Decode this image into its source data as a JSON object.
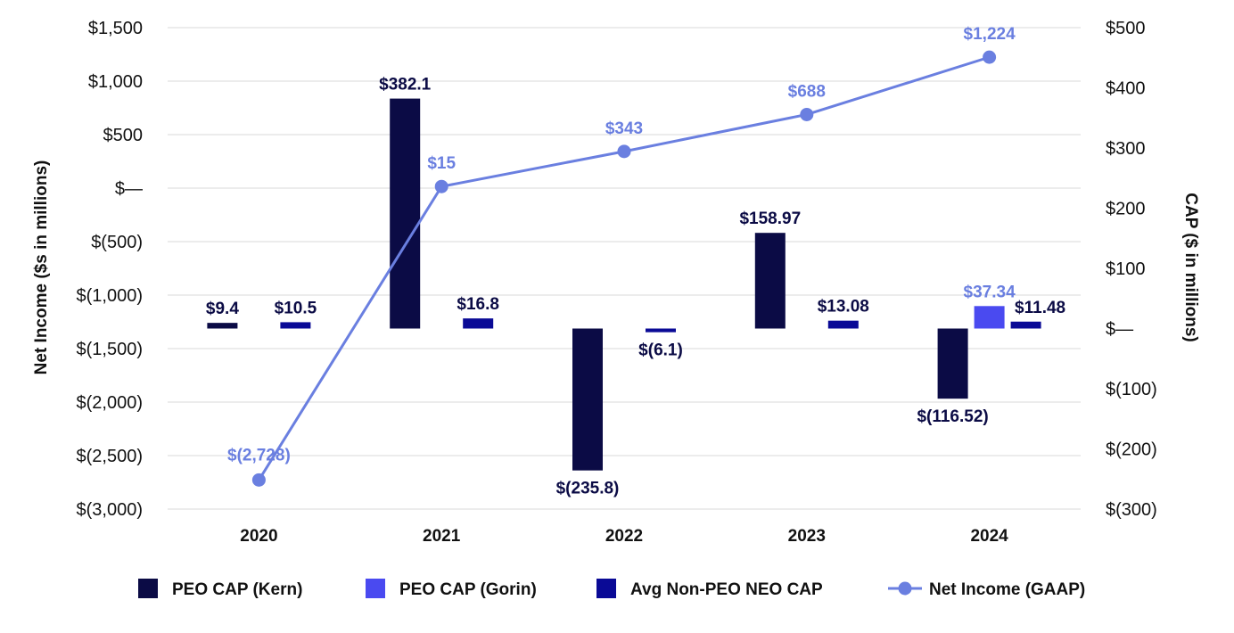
{
  "chart_data": {
    "type": "bar",
    "title": "",
    "categories": [
      "2020",
      "2021",
      "2022",
      "2023",
      "2024"
    ],
    "ylabel_left": "Net Income ($s in millions)",
    "ylabel_right": "CAP ($ in millions)",
    "ylim_left": [
      -3000,
      1500
    ],
    "ylim_right": [
      -300,
      500
    ],
    "yticks_left": [
      {
        "value": 1500,
        "label": "$1,500"
      },
      {
        "value": 1000,
        "label": "$1,000"
      },
      {
        "value": 500,
        "label": "$500"
      },
      {
        "value": 0,
        "label": "$—"
      },
      {
        "value": -500,
        "label": "$(500)"
      },
      {
        "value": -1000,
        "label": "$(1,000)"
      },
      {
        "value": -1500,
        "label": "$(1,500)"
      },
      {
        "value": -2000,
        "label": "$(2,000)"
      },
      {
        "value": -2500,
        "label": "$(2,500)"
      },
      {
        "value": -3000,
        "label": "$(3,000)"
      }
    ],
    "yticks_right": [
      {
        "value": 500,
        "label": "$500"
      },
      {
        "value": 400,
        "label": "$400"
      },
      {
        "value": 300,
        "label": "$300"
      },
      {
        "value": 200,
        "label": "$200"
      },
      {
        "value": 100,
        "label": "$100"
      },
      {
        "value": 0,
        "label": "$—"
      },
      {
        "value": -100,
        "label": "$(100)"
      },
      {
        "value": -200,
        "label": "$(200)"
      },
      {
        "value": -300,
        "label": "$(300)"
      }
    ],
    "grid": true,
    "legend_position": "bottom",
    "series": [
      {
        "name": "PEO CAP (Kern)",
        "type": "bar",
        "axis": "right",
        "color": "#0B0B45",
        "label_color": "#0B0B45",
        "slot": 0,
        "values": [
          9.4,
          382.1,
          -235.8,
          158.97,
          -116.52
        ],
        "labels": [
          "$9.4",
          "$382.1",
          "$(235.8)",
          "$158.97",
          "$(116.52)"
        ]
      },
      {
        "name": "PEO CAP (Gorin)",
        "type": "bar",
        "axis": "right",
        "color": "#4A4AF0",
        "label_color": "#6A7FE0",
        "slot": 1,
        "values": [
          null,
          null,
          null,
          null,
          37.34
        ],
        "labels": [
          null,
          null,
          null,
          null,
          "$37.34"
        ]
      },
      {
        "name": "Avg Non-PEO NEO CAP",
        "type": "bar",
        "axis": "right",
        "color": "#0A0A96",
        "label_color": "#0B0B45",
        "slot": 2,
        "values": [
          10.5,
          16.8,
          -6.1,
          13.08,
          11.48
        ],
        "labels": [
          "$10.5",
          "$16.8",
          "$(6.1)",
          "$13.08",
          "$11.48"
        ]
      },
      {
        "name": "Net Income (GAAP)",
        "type": "line",
        "axis": "left",
        "color": "#6A7FE0",
        "label_color": "#6A7FE0",
        "values": [
          -2728,
          15,
          343,
          688,
          1224
        ],
        "labels": [
          "$(2,728)",
          "$15",
          "$343",
          "$688",
          "$1,224"
        ]
      }
    ]
  }
}
